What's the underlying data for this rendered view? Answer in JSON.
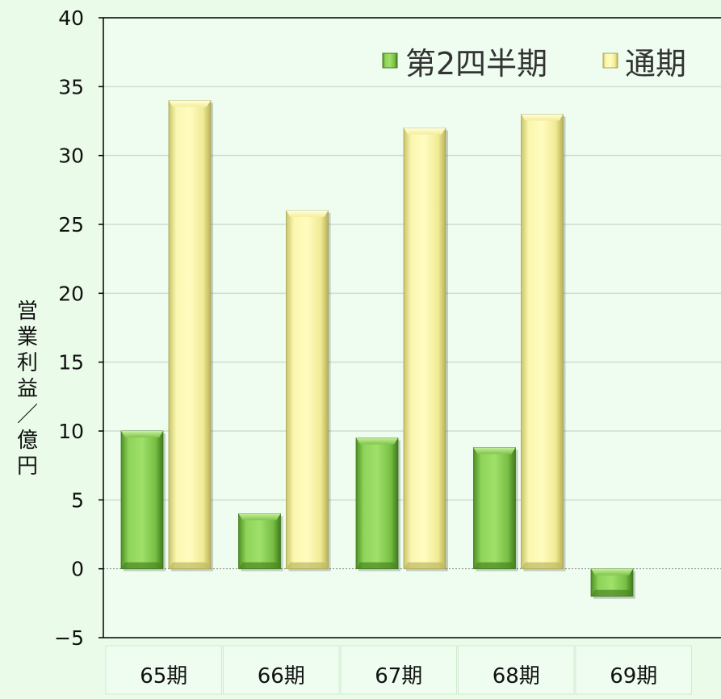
{
  "chart_data": {
    "type": "bar",
    "title": "",
    "xlabel": "",
    "ylabel": "営業利益／億円",
    "ylim": [
      -5,
      40
    ],
    "yticks": [
      -5,
      0,
      5,
      10,
      15,
      20,
      25,
      30,
      35,
      40
    ],
    "categories": [
      "65期",
      "66期",
      "67期",
      "68期",
      "69期"
    ],
    "series": [
      {
        "name": "第2四半期",
        "values": [
          10,
          4,
          9.5,
          8.8,
          -2
        ],
        "color": "#7ec54a"
      },
      {
        "name": "通期",
        "values": [
          34,
          26,
          32,
          33,
          null
        ],
        "color": "#f6f29a"
      }
    ],
    "legend_position": "top-right",
    "grid": true
  }
}
